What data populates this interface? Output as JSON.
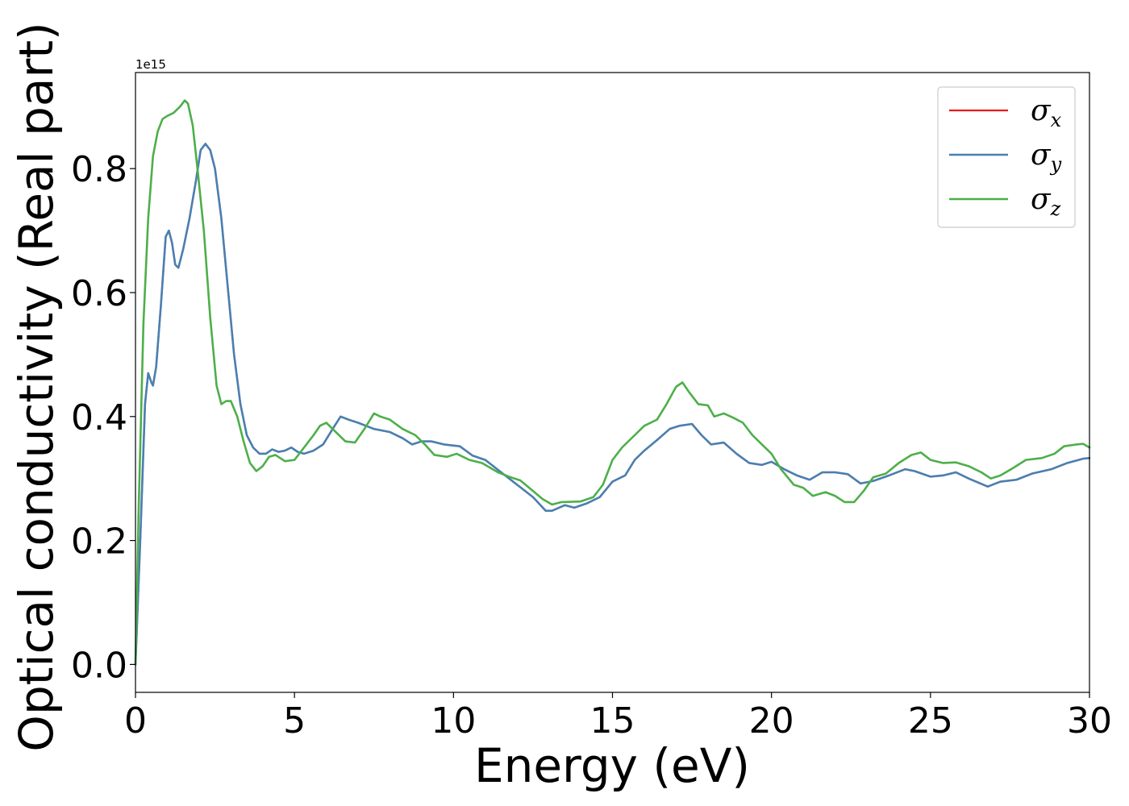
{
  "chart_data": {
    "type": "line",
    "xlabel": "Energy (eV)",
    "ylabel": "Optical conductivity (Real part)",
    "y_offset_label": "1e15",
    "xlim": [
      0,
      30
    ],
    "ylim": [
      -0.045,
      0.955
    ],
    "xticks": [
      0,
      5,
      10,
      15,
      20,
      25,
      30
    ],
    "xtick_labels": [
      "0",
      "5",
      "10",
      "15",
      "20",
      "25",
      "30"
    ],
    "yticks": [
      0.0,
      0.2,
      0.4,
      0.6,
      0.8
    ],
    "ytick_labels": [
      "0.0",
      "0.2",
      "0.4",
      "0.6",
      "0.8"
    ],
    "grid": false,
    "legend_position": "top-right",
    "series": [
      {
        "name": "σ",
        "sub": "x",
        "color": "#e41a1c",
        "width": 2.2,
        "points": [
          [
            0,
            0.0
          ],
          [
            0.15,
            0.2
          ],
          [
            0.3,
            0.42
          ],
          [
            0.4,
            0.47
          ],
          [
            0.5,
            0.455
          ],
          [
            0.55,
            0.45
          ],
          [
            0.65,
            0.48
          ],
          [
            0.8,
            0.58
          ],
          [
            0.95,
            0.69
          ],
          [
            1.05,
            0.7
          ],
          [
            1.15,
            0.68
          ],
          [
            1.25,
            0.645
          ],
          [
            1.35,
            0.64
          ],
          [
            1.5,
            0.67
          ],
          [
            1.7,
            0.72
          ],
          [
            1.9,
            0.78
          ],
          [
            2.05,
            0.83
          ],
          [
            2.2,
            0.84
          ],
          [
            2.35,
            0.83
          ],
          [
            2.5,
            0.8
          ],
          [
            2.7,
            0.72
          ],
          [
            2.9,
            0.61
          ],
          [
            3.1,
            0.5
          ],
          [
            3.3,
            0.42
          ],
          [
            3.5,
            0.37
          ],
          [
            3.7,
            0.35
          ],
          [
            3.9,
            0.34
          ],
          [
            4.1,
            0.34
          ],
          [
            4.3,
            0.347
          ],
          [
            4.5,
            0.343
          ],
          [
            4.7,
            0.345
          ],
          [
            4.9,
            0.35
          ],
          [
            5.1,
            0.343
          ],
          [
            5.3,
            0.34
          ],
          [
            5.6,
            0.345
          ],
          [
            5.9,
            0.355
          ],
          [
            6.2,
            0.38
          ],
          [
            6.45,
            0.4
          ],
          [
            6.7,
            0.395
          ],
          [
            7.0,
            0.39
          ],
          [
            7.5,
            0.38
          ],
          [
            8.0,
            0.375
          ],
          [
            8.4,
            0.365
          ],
          [
            8.7,
            0.355
          ],
          [
            9.0,
            0.36
          ],
          [
            9.3,
            0.36
          ],
          [
            9.7,
            0.355
          ],
          [
            10.2,
            0.352
          ],
          [
            10.6,
            0.337
          ],
          [
            11.0,
            0.33
          ],
          [
            11.5,
            0.31
          ],
          [
            12.0,
            0.29
          ],
          [
            12.5,
            0.27
          ],
          [
            12.9,
            0.248
          ],
          [
            13.1,
            0.248
          ],
          [
            13.5,
            0.257
          ],
          [
            13.8,
            0.253
          ],
          [
            14.2,
            0.26
          ],
          [
            14.6,
            0.27
          ],
          [
            15.0,
            0.295
          ],
          [
            15.4,
            0.305
          ],
          [
            15.7,
            0.33
          ],
          [
            16.0,
            0.345
          ],
          [
            16.4,
            0.362
          ],
          [
            16.8,
            0.38
          ],
          [
            17.1,
            0.385
          ],
          [
            17.5,
            0.388
          ],
          [
            17.8,
            0.37
          ],
          [
            18.1,
            0.355
          ],
          [
            18.5,
            0.358
          ],
          [
            18.9,
            0.34
          ],
          [
            19.3,
            0.325
          ],
          [
            19.7,
            0.322
          ],
          [
            20.0,
            0.327
          ],
          [
            20.4,
            0.315
          ],
          [
            20.8,
            0.305
          ],
          [
            21.2,
            0.298
          ],
          [
            21.6,
            0.31
          ],
          [
            22.0,
            0.31
          ],
          [
            22.4,
            0.307
          ],
          [
            22.8,
            0.292
          ],
          [
            23.2,
            0.296
          ],
          [
            23.7,
            0.305
          ],
          [
            24.2,
            0.315
          ],
          [
            24.5,
            0.312
          ],
          [
            25.0,
            0.303
          ],
          [
            25.4,
            0.305
          ],
          [
            25.8,
            0.31
          ],
          [
            26.2,
            0.3
          ],
          [
            26.8,
            0.287
          ],
          [
            27.2,
            0.295
          ],
          [
            27.7,
            0.298
          ],
          [
            28.2,
            0.308
          ],
          [
            28.8,
            0.315
          ],
          [
            29.3,
            0.325
          ],
          [
            29.8,
            0.332
          ],
          [
            30.0,
            0.333
          ]
        ]
      },
      {
        "name": "σ",
        "sub": "y",
        "color": "#4a7fb0",
        "width": 2.6,
        "points": [
          [
            0,
            0.0
          ],
          [
            0.15,
            0.2
          ],
          [
            0.3,
            0.42
          ],
          [
            0.4,
            0.47
          ],
          [
            0.5,
            0.455
          ],
          [
            0.55,
            0.45
          ],
          [
            0.65,
            0.48
          ],
          [
            0.8,
            0.58
          ],
          [
            0.95,
            0.69
          ],
          [
            1.05,
            0.7
          ],
          [
            1.15,
            0.68
          ],
          [
            1.25,
            0.645
          ],
          [
            1.35,
            0.64
          ],
          [
            1.5,
            0.67
          ],
          [
            1.7,
            0.72
          ],
          [
            1.9,
            0.78
          ],
          [
            2.05,
            0.83
          ],
          [
            2.2,
            0.84
          ],
          [
            2.35,
            0.83
          ],
          [
            2.5,
            0.8
          ],
          [
            2.7,
            0.72
          ],
          [
            2.9,
            0.61
          ],
          [
            3.1,
            0.5
          ],
          [
            3.3,
            0.42
          ],
          [
            3.5,
            0.37
          ],
          [
            3.7,
            0.35
          ],
          [
            3.9,
            0.34
          ],
          [
            4.1,
            0.34
          ],
          [
            4.3,
            0.347
          ],
          [
            4.5,
            0.343
          ],
          [
            4.7,
            0.345
          ],
          [
            4.9,
            0.35
          ],
          [
            5.1,
            0.343
          ],
          [
            5.3,
            0.34
          ],
          [
            5.6,
            0.345
          ],
          [
            5.9,
            0.355
          ],
          [
            6.2,
            0.38
          ],
          [
            6.45,
            0.4
          ],
          [
            6.7,
            0.395
          ],
          [
            7.0,
            0.39
          ],
          [
            7.5,
            0.38
          ],
          [
            8.0,
            0.375
          ],
          [
            8.4,
            0.365
          ],
          [
            8.7,
            0.355
          ],
          [
            9.0,
            0.36
          ],
          [
            9.3,
            0.36
          ],
          [
            9.7,
            0.355
          ],
          [
            10.2,
            0.352
          ],
          [
            10.6,
            0.337
          ],
          [
            11.0,
            0.33
          ],
          [
            11.5,
            0.31
          ],
          [
            12.0,
            0.29
          ],
          [
            12.5,
            0.27
          ],
          [
            12.9,
            0.248
          ],
          [
            13.1,
            0.248
          ],
          [
            13.5,
            0.257
          ],
          [
            13.8,
            0.253
          ],
          [
            14.2,
            0.26
          ],
          [
            14.6,
            0.27
          ],
          [
            15.0,
            0.295
          ],
          [
            15.4,
            0.305
          ],
          [
            15.7,
            0.33
          ],
          [
            16.0,
            0.345
          ],
          [
            16.4,
            0.362
          ],
          [
            16.8,
            0.38
          ],
          [
            17.1,
            0.385
          ],
          [
            17.5,
            0.388
          ],
          [
            17.8,
            0.37
          ],
          [
            18.1,
            0.355
          ],
          [
            18.5,
            0.358
          ],
          [
            18.9,
            0.34
          ],
          [
            19.3,
            0.325
          ],
          [
            19.7,
            0.322
          ],
          [
            20.0,
            0.327
          ],
          [
            20.4,
            0.315
          ],
          [
            20.8,
            0.305
          ],
          [
            21.2,
            0.298
          ],
          [
            21.6,
            0.31
          ],
          [
            22.0,
            0.31
          ],
          [
            22.4,
            0.307
          ],
          [
            22.8,
            0.292
          ],
          [
            23.2,
            0.296
          ],
          [
            23.7,
            0.305
          ],
          [
            24.2,
            0.315
          ],
          [
            24.5,
            0.312
          ],
          [
            25.0,
            0.303
          ],
          [
            25.4,
            0.305
          ],
          [
            25.8,
            0.31
          ],
          [
            26.2,
            0.3
          ],
          [
            26.8,
            0.287
          ],
          [
            27.2,
            0.295
          ],
          [
            27.7,
            0.298
          ],
          [
            28.2,
            0.308
          ],
          [
            28.8,
            0.315
          ],
          [
            29.3,
            0.325
          ],
          [
            29.8,
            0.332
          ],
          [
            30.0,
            0.333
          ]
        ]
      },
      {
        "name": "σ",
        "sub": "z",
        "color": "#4daf4a",
        "width": 2.6,
        "points": [
          [
            0,
            0.0
          ],
          [
            0.1,
            0.25
          ],
          [
            0.25,
            0.55
          ],
          [
            0.4,
            0.72
          ],
          [
            0.55,
            0.82
          ],
          [
            0.7,
            0.86
          ],
          [
            0.85,
            0.88
          ],
          [
            1.0,
            0.885
          ],
          [
            1.2,
            0.89
          ],
          [
            1.4,
            0.9
          ],
          [
            1.55,
            0.91
          ],
          [
            1.65,
            0.905
          ],
          [
            1.8,
            0.87
          ],
          [
            1.95,
            0.8
          ],
          [
            2.15,
            0.7
          ],
          [
            2.35,
            0.56
          ],
          [
            2.55,
            0.45
          ],
          [
            2.7,
            0.42
          ],
          [
            2.85,
            0.425
          ],
          [
            3.0,
            0.425
          ],
          [
            3.2,
            0.4
          ],
          [
            3.4,
            0.36
          ],
          [
            3.6,
            0.325
          ],
          [
            3.8,
            0.312
          ],
          [
            4.0,
            0.32
          ],
          [
            4.2,
            0.335
          ],
          [
            4.4,
            0.338
          ],
          [
            4.7,
            0.328
          ],
          [
            5.0,
            0.33
          ],
          [
            5.3,
            0.35
          ],
          [
            5.6,
            0.37
          ],
          [
            5.8,
            0.385
          ],
          [
            6.0,
            0.39
          ],
          [
            6.3,
            0.375
          ],
          [
            6.6,
            0.36
          ],
          [
            6.9,
            0.358
          ],
          [
            7.2,
            0.38
          ],
          [
            7.5,
            0.405
          ],
          [
            7.7,
            0.4
          ],
          [
            8.0,
            0.395
          ],
          [
            8.4,
            0.38
          ],
          [
            8.8,
            0.37
          ],
          [
            9.1,
            0.355
          ],
          [
            9.4,
            0.338
          ],
          [
            9.8,
            0.335
          ],
          [
            10.1,
            0.34
          ],
          [
            10.5,
            0.33
          ],
          [
            10.9,
            0.325
          ],
          [
            11.4,
            0.31
          ],
          [
            11.8,
            0.302
          ],
          [
            12.1,
            0.297
          ],
          [
            12.5,
            0.28
          ],
          [
            12.8,
            0.267
          ],
          [
            13.1,
            0.258
          ],
          [
            13.4,
            0.262
          ],
          [
            14.0,
            0.263
          ],
          [
            14.4,
            0.27
          ],
          [
            14.7,
            0.29
          ],
          [
            15.0,
            0.33
          ],
          [
            15.3,
            0.35
          ],
          [
            15.7,
            0.37
          ],
          [
            16.0,
            0.385
          ],
          [
            16.4,
            0.395
          ],
          [
            16.7,
            0.42
          ],
          [
            17.0,
            0.448
          ],
          [
            17.2,
            0.455
          ],
          [
            17.4,
            0.44
          ],
          [
            17.7,
            0.42
          ],
          [
            18.0,
            0.418
          ],
          [
            18.2,
            0.4
          ],
          [
            18.5,
            0.405
          ],
          [
            18.8,
            0.398
          ],
          [
            19.1,
            0.39
          ],
          [
            19.4,
            0.37
          ],
          [
            19.7,
            0.355
          ],
          [
            20.0,
            0.34
          ],
          [
            20.3,
            0.315
          ],
          [
            20.7,
            0.29
          ],
          [
            21.0,
            0.285
          ],
          [
            21.3,
            0.272
          ],
          [
            21.7,
            0.278
          ],
          [
            22.0,
            0.272
          ],
          [
            22.3,
            0.262
          ],
          [
            22.6,
            0.262
          ],
          [
            22.9,
            0.28
          ],
          [
            23.2,
            0.302
          ],
          [
            23.6,
            0.308
          ],
          [
            24.0,
            0.325
          ],
          [
            24.4,
            0.338
          ],
          [
            24.7,
            0.342
          ],
          [
            25.0,
            0.33
          ],
          [
            25.4,
            0.325
          ],
          [
            25.8,
            0.326
          ],
          [
            26.2,
            0.32
          ],
          [
            26.6,
            0.31
          ],
          [
            26.9,
            0.3
          ],
          [
            27.2,
            0.305
          ],
          [
            27.6,
            0.317
          ],
          [
            28.0,
            0.33
          ],
          [
            28.5,
            0.333
          ],
          [
            28.9,
            0.34
          ],
          [
            29.2,
            0.352
          ],
          [
            29.6,
            0.355
          ],
          [
            29.8,
            0.356
          ],
          [
            30.0,
            0.35
          ]
        ]
      }
    ]
  }
}
